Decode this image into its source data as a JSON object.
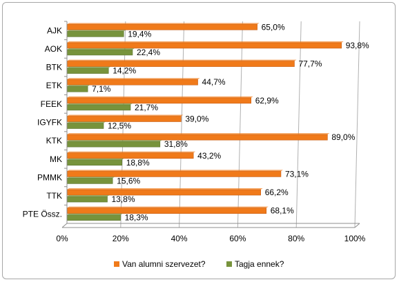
{
  "chart_data": {
    "type": "bar",
    "orientation": "horizontal",
    "categories": [
      "AJK",
      "AOK",
      "BTK",
      "ETK",
      "FEEK",
      "IGYFK",
      "KTK",
      "MK",
      "PMMK",
      "TTK",
      "PTE Össz."
    ],
    "series": [
      {
        "name": "Van alumni szervezet?",
        "color": "#f07a1a",
        "values": [
          65.0,
          93.8,
          77.7,
          44.7,
          62.9,
          39.0,
          89.0,
          43.2,
          73.1,
          66.2,
          68.1
        ],
        "labels": [
          "65,0%",
          "93,8%",
          "77,7%",
          "44,7%",
          "62,9%",
          "39,0%",
          "89,0%",
          "43,2%",
          "73,1%",
          "66,2%",
          "68,1%"
        ]
      },
      {
        "name": "Tagja ennek?",
        "color": "#77933c",
        "values": [
          19.4,
          22.4,
          14.2,
          7.1,
          21.7,
          12.5,
          31.8,
          18.8,
          15.6,
          13.8,
          18.3
        ],
        "labels": [
          "19,4%",
          "22,4%",
          "14,2%",
          "7,1%",
          "21,7%",
          "12,5%",
          "31,8%",
          "18,8%",
          "15,6%",
          "13,8%",
          "18,3%"
        ]
      }
    ],
    "xticks": [
      "0%",
      "20%",
      "40%",
      "60%",
      "80%",
      "100%"
    ],
    "xlim": [
      0,
      100
    ],
    "grid": true,
    "legend": "bottom",
    "title": "",
    "xlabel": "",
    "ylabel": ""
  }
}
